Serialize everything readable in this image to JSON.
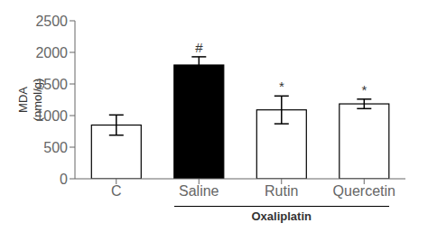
{
  "chart_data": {
    "type": "bar",
    "categories": [
      "C",
      "Saline",
      "Rutin",
      "Quercetin"
    ],
    "values": [
      850,
      1800,
      1090,
      1185
    ],
    "errors": [
      160,
      130,
      220,
      75
    ],
    "colors": [
      "white",
      "black",
      "white",
      "white"
    ],
    "annotations": [
      null,
      "#",
      "*",
      "*"
    ],
    "ylabel": "MDA\n(nmol/g)",
    "group_labels": [
      {
        "text": "Oxaliplatin",
        "from": "Saline",
        "to": "Quercetin"
      }
    ],
    "ylim": [
      0,
      2500
    ],
    "yticks": [
      0,
      500,
      1000,
      1500,
      2000,
      2500
    ]
  }
}
